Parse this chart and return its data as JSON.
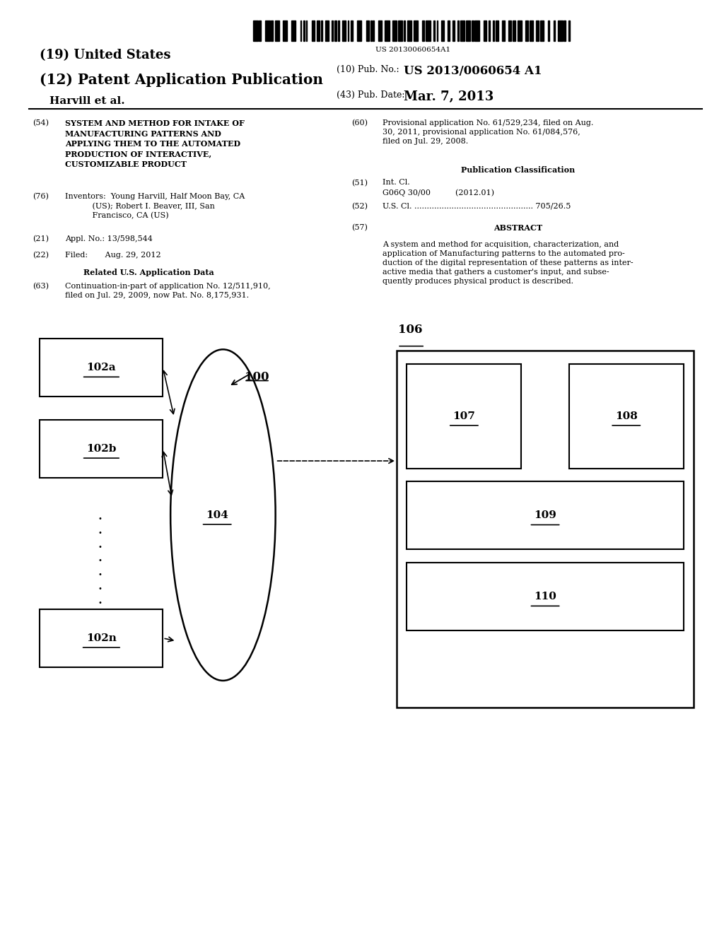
{
  "bg_color": "#ffffff",
  "barcode_text": "US 20130060654A1",
  "title_19": "(19) United States",
  "title_12": "(12) Patent Application Publication",
  "pub_no_label": "(10) Pub. No.:",
  "pub_no_value": "US 2013/0060654 A1",
  "author": "Harvill et al.",
  "pub_date_label": "(43) Pub. Date:",
  "pub_date_value": "Mar. 7, 2013",
  "field54_label": "(54)",
  "field54_text": "SYSTEM AND METHOD FOR INTAKE OF\nMANUFACTURING PATTERNS AND\nAPPLYING THEM TO THE AUTOMATED\nPRODUCTION OF INTERACTIVE,\nCUSTOMIZABLE PRODUCT",
  "field76_label": "(76)",
  "field76_text": "Inventors:  Young Harvill, Half Moon Bay, CA\n           (US); Robert I. Beaver, III, San\n           Francisco, CA (US)",
  "field21_label": "(21)",
  "field21_text": "Appl. No.: 13/598,544",
  "field22_label": "(22)",
  "field22_text": "Filed:       Aug. 29, 2012",
  "related_header": "Related U.S. Application Data",
  "field63_label": "(63)",
  "field63_text": "Continuation-in-part of application No. 12/511,910,\nfiled on Jul. 29, 2009, now Pat. No. 8,175,931.",
  "field60_label": "(60)",
  "field60_text": "Provisional application No. 61/529,234, filed on Aug.\n30, 2011, provisional application No. 61/084,576,\nfiled on Jul. 29, 2008.",
  "pub_class_header": "Publication Classification",
  "field51_label": "(51)",
  "field51_text": "Int. Cl.\nG06Q 30/00          (2012.01)",
  "field52_label": "(52)",
  "field52_text": "U.S. Cl. ................................................ 705/26.5",
  "field57_label": "(57)",
  "abstract_header": "ABSTRACT",
  "abstract_text": "A system and method for acquisition, characterization, and\napplication of Manufacturing patterns to the automated pro-\nduction of the digital representation of these patterns as inter-\nactive media that gathers a customer's input, and subse-\nquently produces physical product is described."
}
